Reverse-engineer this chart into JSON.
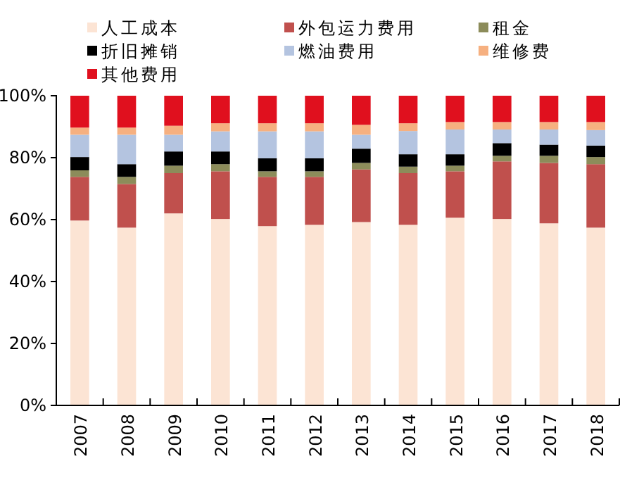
{
  "chart_data": {
    "type": "bar",
    "stacked": true,
    "categories": [
      "2007",
      "2008",
      "2009",
      "2010",
      "2011",
      "2012",
      "2013",
      "2014",
      "2015",
      "2016",
      "2017",
      "2018"
    ],
    "series": [
      {
        "name": "人工成本",
        "color": "#fce4d4",
        "values": [
          59.7,
          57.4,
          62.0,
          60.2,
          57.9,
          58.3,
          59.2,
          58.3,
          60.6,
          60.2,
          58.8,
          57.4
        ]
      },
      {
        "name": "外包运力费用",
        "color": "#c0504d",
        "values": [
          14.1,
          14.1,
          13.0,
          15.4,
          15.9,
          15.5,
          17.0,
          16.7,
          15.0,
          18.6,
          19.5,
          20.5
        ]
      },
      {
        "name": "租金",
        "color": "#8c8c5a",
        "values": [
          2.1,
          2.3,
          2.4,
          2.3,
          1.8,
          1.8,
          2.1,
          2.1,
          1.8,
          1.8,
          2.3,
          2.3
        ]
      },
      {
        "name": "折旧摊销",
        "color": "#000000",
        "values": [
          4.3,
          4.1,
          4.6,
          4.1,
          4.2,
          4.2,
          4.6,
          4.0,
          3.7,
          4.1,
          3.6,
          3.7
        ]
      },
      {
        "name": "燃油费用",
        "color": "#b4c4e0",
        "values": [
          7.2,
          9.5,
          5.4,
          6.5,
          8.7,
          8.7,
          4.5,
          7.5,
          8.0,
          4.4,
          4.9,
          5.0
        ]
      },
      {
        "name": "维修费",
        "color": "#f6b080",
        "values": [
          2.3,
          2.3,
          2.9,
          2.6,
          2.6,
          2.6,
          3.2,
          2.5,
          2.4,
          2.4,
          2.4,
          2.6
        ]
      },
      {
        "name": "其他费用",
        "color": "#e0101e",
        "values": [
          10.3,
          10.3,
          9.7,
          8.9,
          8.9,
          8.9,
          9.4,
          8.9,
          8.5,
          8.5,
          8.5,
          8.5
        ]
      }
    ],
    "ylim": [
      0,
      100
    ],
    "yticks": [
      {
        "value": 0,
        "label": "0%"
      },
      {
        "value": 20,
        "label": "20%"
      },
      {
        "value": 40,
        "label": "40%"
      },
      {
        "value": 60,
        "label": "60%"
      },
      {
        "value": 80,
        "label": "80%"
      },
      {
        "value": 100,
        "label": "100%"
      }
    ],
    "legend": "top"
  }
}
